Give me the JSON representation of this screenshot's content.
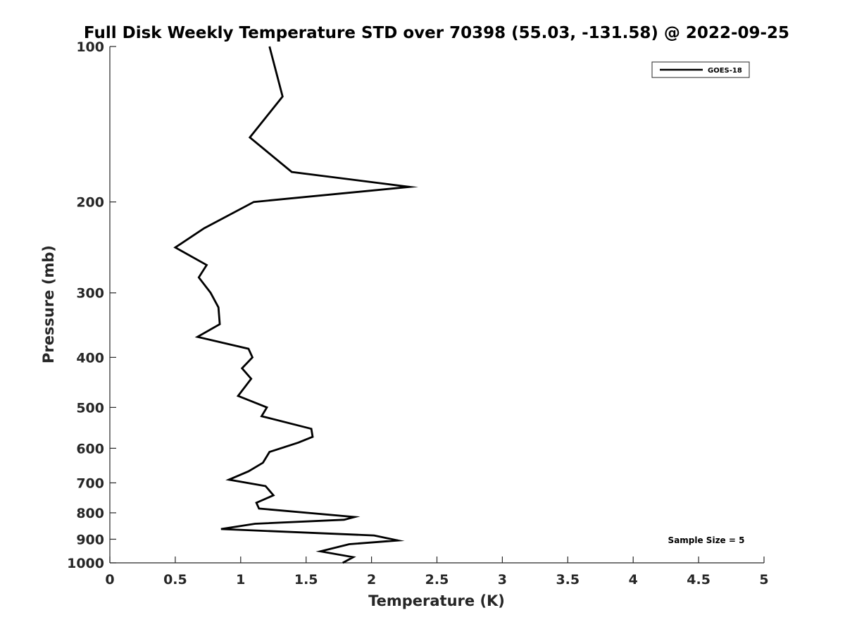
{
  "chart_data": {
    "type": "line",
    "title": "Full Disk Weekly Temperature STD over 70398 (55.03, -131.58) @ 2022-09-25",
    "xlabel": "Temperature (K)",
    "ylabel": "Pressure (mb)",
    "xlim": [
      0,
      5
    ],
    "ylim": [
      100,
      1000
    ],
    "y_scale": "log",
    "y_direction": "reversed",
    "xticks": [
      0,
      0.5,
      1,
      1.5,
      2,
      2.5,
      3,
      3.5,
      4,
      4.5,
      5
    ],
    "xtick_labels": [
      "0",
      "0.5",
      "1",
      "1.5",
      "2",
      "2.5",
      "3",
      "3.5",
      "4",
      "4.5",
      "5"
    ],
    "yticks": [
      100,
      200,
      300,
      400,
      500,
      600,
      700,
      800,
      900,
      1000
    ],
    "ytick_labels": [
      "100",
      "200",
      "300",
      "400",
      "500",
      "600",
      "700",
      "800",
      "900",
      "1000"
    ],
    "grid": false,
    "legend_position": "top-right",
    "annotation": "Sample Size = 5",
    "series": [
      {
        "name": "GOES-18",
        "color": "#000000",
        "points": [
          [
            1.22,
            100
          ],
          [
            1.32,
            125
          ],
          [
            1.07,
            150
          ],
          [
            1.39,
            175
          ],
          [
            2.29,
            187
          ],
          [
            1.1,
            200
          ],
          [
            0.72,
            225
          ],
          [
            0.5,
            245
          ],
          [
            0.74,
            265
          ],
          [
            0.68,
            280
          ],
          [
            0.77,
            300
          ],
          [
            0.83,
            320
          ],
          [
            0.84,
            345
          ],
          [
            0.67,
            365
          ],
          [
            1.06,
            385
          ],
          [
            1.09,
            400
          ],
          [
            1.01,
            420
          ],
          [
            1.08,
            440
          ],
          [
            0.98,
            475
          ],
          [
            1.2,
            500
          ],
          [
            1.16,
            520
          ],
          [
            1.54,
            550
          ],
          [
            1.55,
            570
          ],
          [
            1.44,
            585
          ],
          [
            1.22,
            610
          ],
          [
            1.17,
            640
          ],
          [
            1.06,
            665
          ],
          [
            0.91,
            690
          ],
          [
            1.19,
            710
          ],
          [
            1.25,
            740
          ],
          [
            1.12,
            765
          ],
          [
            1.14,
            785
          ],
          [
            1.87,
            815
          ],
          [
            1.79,
            825
          ],
          [
            1.11,
            840
          ],
          [
            0.85,
            860
          ],
          [
            2.02,
            885
          ],
          [
            2.2,
            905
          ],
          [
            1.83,
            920
          ],
          [
            1.61,
            950
          ],
          [
            1.86,
            975
          ],
          [
            1.78,
            1000
          ]
        ]
      }
    ]
  }
}
